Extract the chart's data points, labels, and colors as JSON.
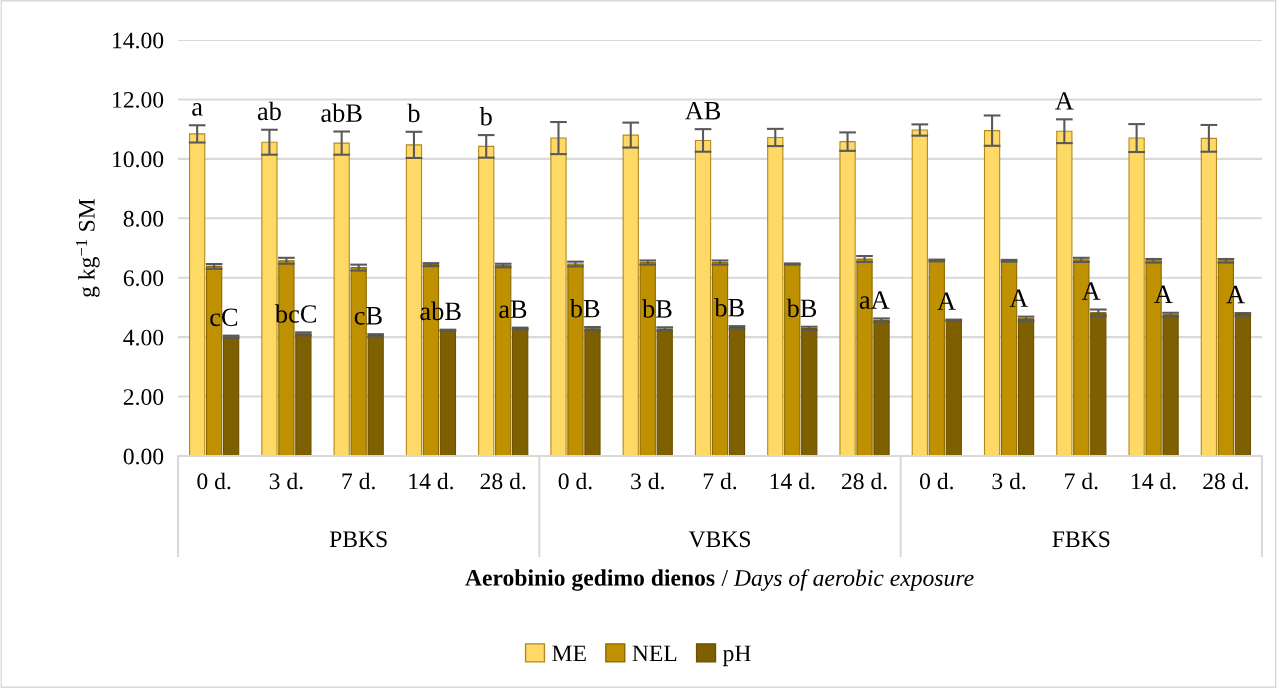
{
  "chart_data": {
    "type": "bar",
    "ylabel": "g kg$^{−1}$ SM",
    "xlabel": "Aerobinio gedimo dienos / Days of aerobic exposure",
    "categories": [
      "0 d.",
      "3 d.",
      "7 d.",
      "14 d.",
      "28 d.",
      "0 d.",
      "3 d.",
      "7 d.",
      "14 d.",
      "28 d.",
      "0 d.",
      "3 d.",
      "7 d.",
      "14 d.",
      "28 d."
    ],
    "series": [
      {
        "name": "ME",
        "color": "#ffd966",
        "values": [
          10.84,
          10.56,
          10.53,
          10.47,
          10.42,
          10.7,
          10.8,
          10.62,
          10.72,
          10.58,
          10.97,
          10.95,
          10.93,
          10.7,
          10.69
        ],
        "errors": [
          0.29,
          0.42,
          0.39,
          0.44,
          0.38,
          0.54,
          0.42,
          0.38,
          0.29,
          0.31,
          0.19,
          0.51,
          0.4,
          0.47,
          0.45
        ],
        "value_labels": [
          "a",
          "ab",
          "abB",
          "b",
          "b",
          null,
          null,
          "AB",
          null,
          null,
          null,
          null,
          "A",
          null,
          null
        ]
      },
      {
        "name": "NEL",
        "color": "#bf9000",
        "values": [
          6.38,
          6.57,
          6.34,
          6.44,
          6.41,
          6.46,
          6.51,
          6.51,
          6.46,
          6.63,
          6.58,
          6.57,
          6.6,
          6.57,
          6.57
        ],
        "errors": [
          0.08,
          0.1,
          0.1,
          0.05,
          0.06,
          0.08,
          0.07,
          0.07,
          0.02,
          0.1,
          0.03,
          0.03,
          0.07,
          0.06,
          0.06
        ]
      },
      {
        "name": "pH",
        "color": "#7f6000",
        "values": [
          4.01,
          4.11,
          4.05,
          4.23,
          4.29,
          4.28,
          4.27,
          4.32,
          4.29,
          4.57,
          4.57,
          4.62,
          4.82,
          4.75,
          4.76
        ],
        "errors": [
          0.04,
          0.05,
          0.05,
          0.02,
          0.03,
          0.06,
          0.06,
          0.05,
          0.06,
          0.06,
          0.02,
          0.07,
          0.11,
          0.07,
          0.05
        ],
        "value_labels": [
          "cC",
          "bcC",
          "cB",
          "abB",
          "aB",
          "bB",
          "bB",
          "bB",
          "bB",
          "aA",
          "A",
          "A",
          "A",
          "A",
          "A"
        ]
      }
    ],
    "ylim": [
      0,
      14
    ],
    "yticks": [
      {
        "value": 0,
        "label": "0.00"
      },
      {
        "value": 2,
        "label": "2.00"
      },
      {
        "value": 4,
        "label": "4.00"
      },
      {
        "value": 6,
        "label": "6.00"
      },
      {
        "value": 8,
        "label": "8.00"
      },
      {
        "value": 10,
        "label": "10.00"
      },
      {
        "value": 12,
        "label": "12.00"
      },
      {
        "value": 14,
        "label": "14.00"
      }
    ],
    "grid": "y",
    "legend": "bottom",
    "annotations": [
      "PBKS",
      "VBKS",
      "FBKS"
    ]
  }
}
